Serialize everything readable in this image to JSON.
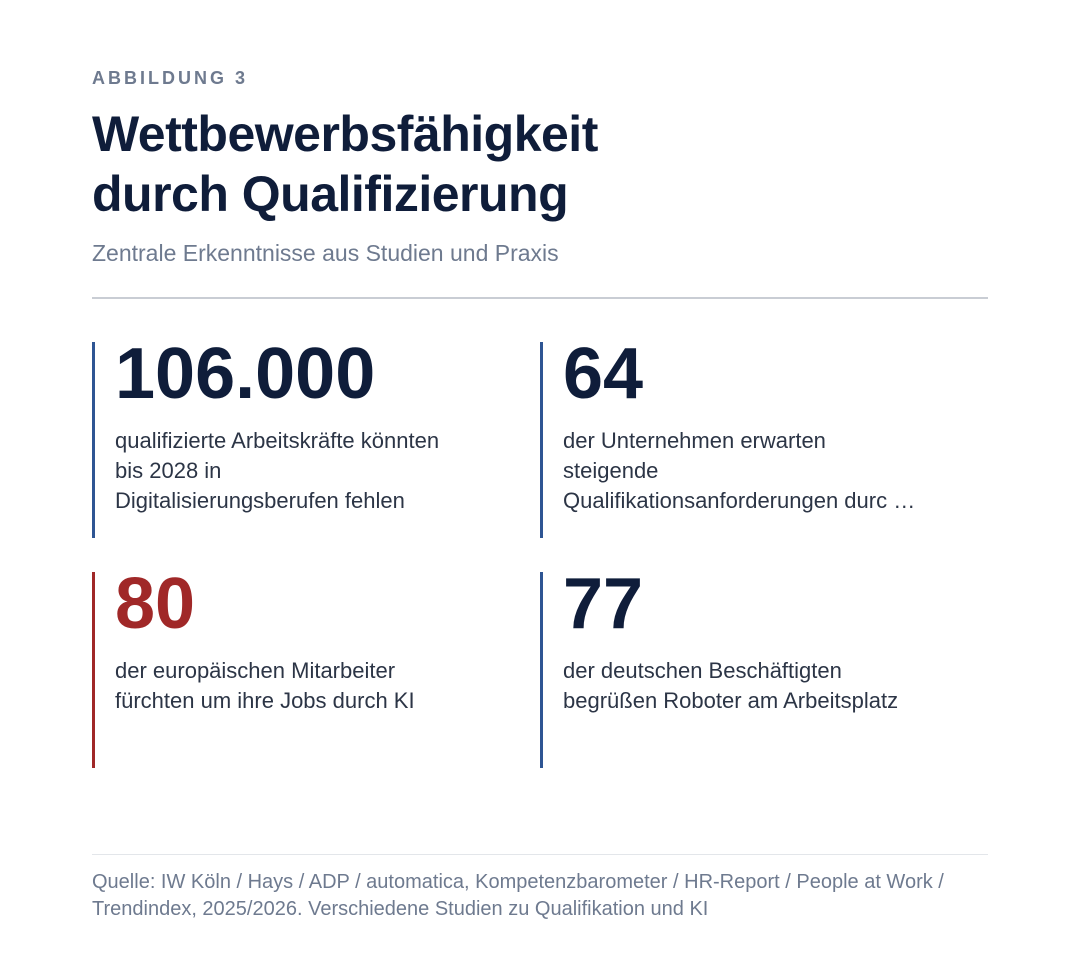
{
  "header": {
    "kicker": "ABBILDUNG 3",
    "title": "Wettbewerbsfähigkeit\ndurch Qualifizierung",
    "subtitle": "Zentrale Erkenntnisse aus Studien und Praxis"
  },
  "stats": [
    {
      "value": "106.000",
      "description": "qualifizierte Arbeitskräfte könnten\nbis 2028 in\nDigitalisierungsberufen fehlen",
      "accent": "#2e5593"
    },
    {
      "value": "64",
      "description": "der Unternehmen erwarten\nsteigende\nQualifikationsanforderungen durc …",
      "accent": "#2e5593"
    },
    {
      "value": "80",
      "description": "der europäischen Mitarbeiter\nfürchten um ihre Jobs durch KI",
      "accent": "#a02828"
    },
    {
      "value": "77",
      "description": "der deutschen Beschäftigten\nbegrüßen Roboter am Arbeitsplatz",
      "accent": "#2e5593"
    }
  ],
  "footer": {
    "source": "Quelle: IW Köln / Hays / ADP / automatica, Kompetenzbarometer / HR-Report / People at Work / Trendindex, 2025/2026. Verschiedene Studien zu Qualifikation und KI"
  },
  "colors": {
    "navy": "#0f1d3a",
    "blue_accent": "#2e5593",
    "red_accent": "#a02828",
    "muted_text": "#6e7a8f"
  }
}
